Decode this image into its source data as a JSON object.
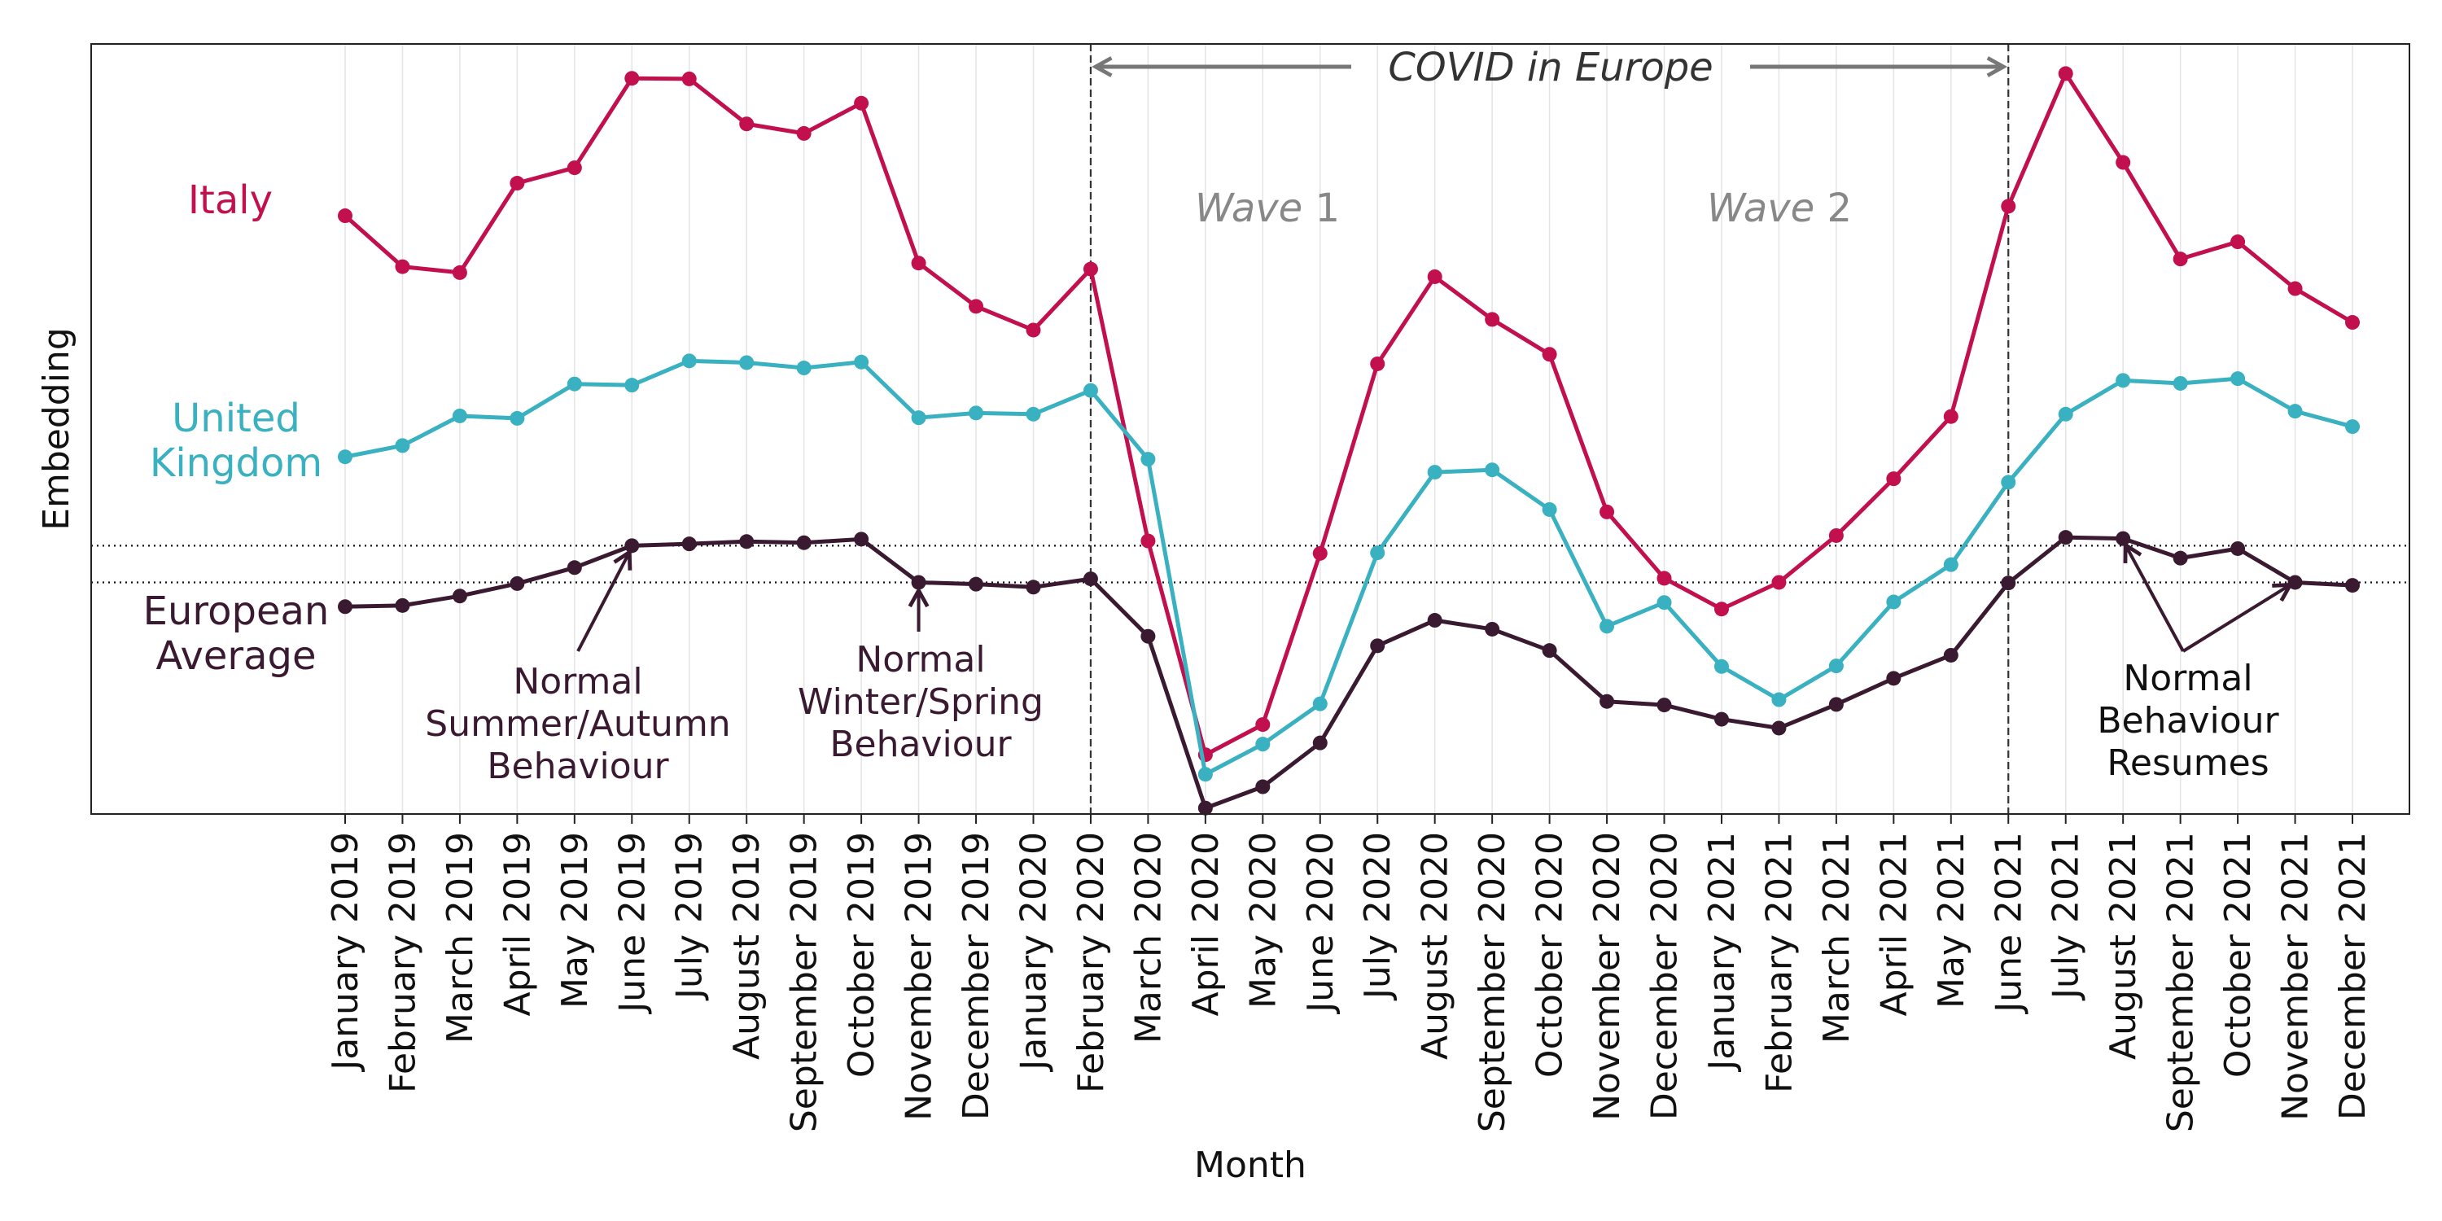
{
  "chart_data": {
    "type": "line",
    "title": "",
    "xlabel": "Month",
    "ylabel": "Embedding",
    "yticks_shown": false,
    "ylim": [
      0.5,
      13.5
    ],
    "grid": "vertical",
    "legend": "none",
    "categories": [
      "January 2019",
      "February 2019",
      "March 2019",
      "April 2019",
      "May 2019",
      "June 2019",
      "July 2019",
      "August 2019",
      "September 2019",
      "October 2019",
      "November 2019",
      "December 2019",
      "January 2020",
      "February 2020",
      "March 2020",
      "April 2020",
      "May 2020",
      "June 2020",
      "July 2020",
      "August 2020",
      "September 2020",
      "October 2020",
      "November 2020",
      "December 2020",
      "January 2021",
      "February 2021",
      "March 2021",
      "April 2021",
      "May 2021",
      "June 2021",
      "July 2021",
      "August 2021",
      "September 2021",
      "October 2021",
      "November 2021",
      "December 2021"
    ],
    "series": [
      {
        "name": "Italy",
        "color": "#c2104f",
        "values": [
          10.6,
          9.74,
          9.64,
          11.15,
          11.41,
          12.92,
          12.91,
          12.15,
          11.99,
          12.5,
          9.8,
          9.07,
          8.67,
          9.7,
          5.11,
          1.5,
          2.01,
          4.9,
          8.1,
          9.57,
          8.85,
          8.26,
          5.6,
          4.48,
          3.96,
          4.41,
          5.2,
          6.16,
          7.21,
          10.76,
          13.0,
          11.5,
          9.87,
          10.16,
          9.37,
          8.8
        ]
      },
      {
        "name": "United Kingdom",
        "color": "#3ab1c0",
        "values": [
          6.53,
          6.72,
          7.22,
          7.18,
          7.76,
          7.74,
          8.15,
          8.12,
          8.03,
          8.13,
          7.19,
          7.27,
          7.25,
          7.65,
          6.49,
          1.17,
          1.68,
          2.36,
          4.91,
          6.27,
          6.31,
          5.64,
          3.67,
          4.07,
          2.99,
          2.43,
          3.0,
          4.08,
          4.71,
          6.1,
          7.25,
          7.82,
          7.77,
          7.85,
          7.3,
          7.04
        ]
      },
      {
        "name": "European Average",
        "color": "#3a1a31",
        "values": [
          4.0,
          4.02,
          4.18,
          4.39,
          4.66,
          5.03,
          5.06,
          5.1,
          5.08,
          5.14,
          4.41,
          4.38,
          4.33,
          4.47,
          3.5,
          0.6,
          0.96,
          1.7,
          3.34,
          3.77,
          3.62,
          3.26,
          2.4,
          2.34,
          2.1,
          1.95,
          2.35,
          2.79,
          3.18,
          4.4,
          5.17,
          5.15,
          4.82,
          4.98,
          4.41,
          4.36
        ]
      }
    ],
    "series_labels": [
      {
        "series": 0,
        "lines": [
          "Italy"
        ]
      },
      {
        "series": 1,
        "lines": [
          "United",
          "Kingdom"
        ]
      },
      {
        "series": 2,
        "lines": [
          "European",
          "Average"
        ]
      }
    ],
    "reference_lines": {
      "horizontal": [
        5.03,
        4.41
      ],
      "vertical_at_categories": [
        13,
        29
      ]
    },
    "annotations": {
      "covid": {
        "label": "COVID in Europe",
        "from_index": 13,
        "to_index": 29
      },
      "waves": [
        {
          "italic": "Wave",
          "number": "1"
        },
        {
          "italic": "Wave",
          "number": "2"
        }
      ],
      "callouts": [
        {
          "lines": [
            "Normal",
            "Summer/Autumn",
            "Behaviour"
          ],
          "target_index": 5
        },
        {
          "lines": [
            "Normal",
            "Winter/Spring",
            "Behaviour"
          ],
          "target_index": 10
        },
        {
          "lines": [
            "Normal",
            "Behaviour",
            "Resumes"
          ],
          "target_indices": [
            31,
            34
          ]
        }
      ]
    }
  }
}
